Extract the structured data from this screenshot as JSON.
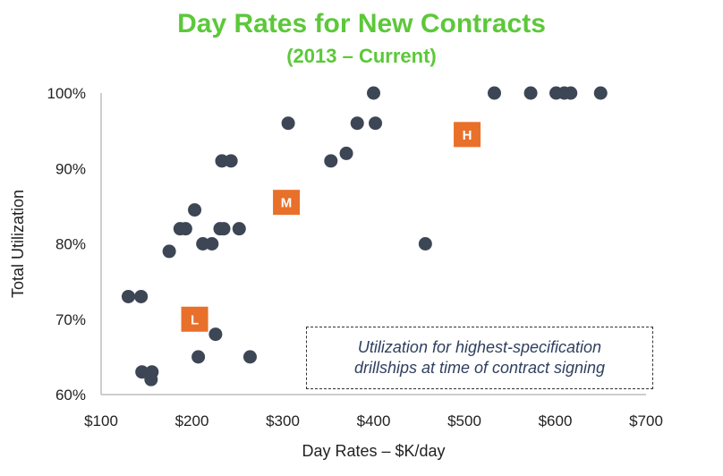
{
  "chart_data": {
    "type": "scatter",
    "title": "Day Rates for New Contracts",
    "subtitle": "(2013 – Current)",
    "xlabel": "Day Rates – $K/day",
    "ylabel": "Total Utilization",
    "xlim": [
      100,
      700
    ],
    "ylim": [
      60,
      100
    ],
    "x_ticks": [
      "$100",
      "$200",
      "$300",
      "$400",
      "$500",
      "$600",
      "$700"
    ],
    "y_ticks": [
      "60%",
      "70%",
      "80%",
      "90%",
      "100%"
    ],
    "grid": false,
    "point_color": "#3d4655",
    "points": [
      {
        "x": 130,
        "y": 73
      },
      {
        "x": 144,
        "y": 73
      },
      {
        "x": 145,
        "y": 63
      },
      {
        "x": 156,
        "y": 63
      },
      {
        "x": 155,
        "y": 62
      },
      {
        "x": 175,
        "y": 79
      },
      {
        "x": 187,
        "y": 82
      },
      {
        "x": 193,
        "y": 82
      },
      {
        "x": 203,
        "y": 84.5
      },
      {
        "x": 207,
        "y": 65
      },
      {
        "x": 212,
        "y": 80
      },
      {
        "x": 222,
        "y": 80
      },
      {
        "x": 226,
        "y": 68
      },
      {
        "x": 231,
        "y": 82
      },
      {
        "x": 233,
        "y": 91
      },
      {
        "x": 235,
        "y": 82
      },
      {
        "x": 243,
        "y": 91
      },
      {
        "x": 252,
        "y": 82
      },
      {
        "x": 264,
        "y": 65
      },
      {
        "x": 306,
        "y": 96
      },
      {
        "x": 353,
        "y": 91
      },
      {
        "x": 370,
        "y": 92
      },
      {
        "x": 382,
        "y": 96
      },
      {
        "x": 400,
        "y": 100
      },
      {
        "x": 402,
        "y": 96
      },
      {
        "x": 457,
        "y": 80
      },
      {
        "x": 533,
        "y": 100
      },
      {
        "x": 573,
        "y": 100
      },
      {
        "x": 601,
        "y": 100
      },
      {
        "x": 610,
        "y": 100
      },
      {
        "x": 617,
        "y": 100
      },
      {
        "x": 650,
        "y": 100
      }
    ],
    "markers": [
      {
        "label": "L",
        "x": 203,
        "y": 70
      },
      {
        "label": "M",
        "x": 304,
        "y": 85.5
      },
      {
        "label": "H",
        "x": 503,
        "y": 94.5
      }
    ],
    "marker_color": "#e8702a",
    "annotation": {
      "line1": "Utilization for highest-specification",
      "line2": "drillships at time of contract signing"
    }
  }
}
